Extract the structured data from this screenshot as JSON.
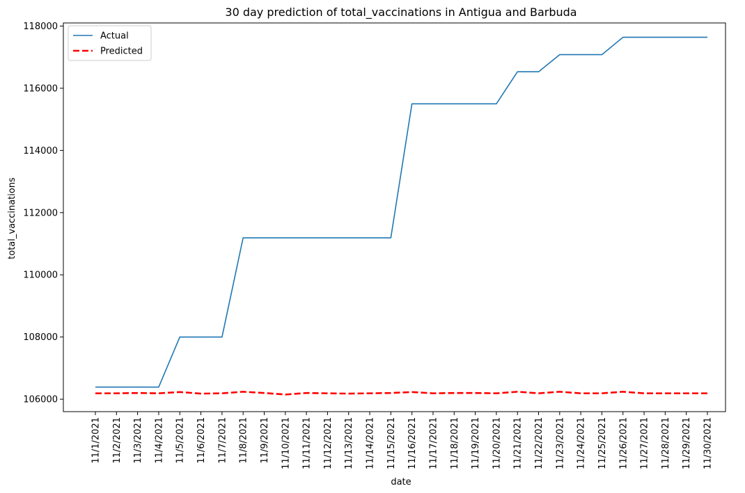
{
  "chart_data": {
    "type": "line",
    "title": "30 day prediction of total_vaccinations in Antigua and Barbuda",
    "xlabel": "date",
    "ylabel": "total_vaccinations",
    "categories": [
      "11/1/2021",
      "11/2/2021",
      "11/3/2021",
      "11/4/2021",
      "11/5/2021",
      "11/6/2021",
      "11/7/2021",
      "11/8/2021",
      "11/9/2021",
      "11/10/2021",
      "11/11/2021",
      "11/12/2021",
      "11/13/2021",
      "11/14/2021",
      "11/15/2021",
      "11/16/2021",
      "11/17/2021",
      "11/18/2021",
      "11/19/2021",
      "11/20/2021",
      "11/21/2021",
      "11/22/2021",
      "11/23/2021",
      "11/24/2021",
      "11/25/2021",
      "11/26/2021",
      "11/27/2021",
      "11/28/2021",
      "11/29/2021",
      "11/30/2021"
    ],
    "ylim": [
      105600,
      118100
    ],
    "yticks": [
      106000,
      108000,
      110000,
      112000,
      114000,
      116000,
      118000
    ],
    "grid": false,
    "legend_position": "top-left",
    "series": [
      {
        "name": "Actual",
        "color": "#1f77b4",
        "style": "solid",
        "values": [
          106390,
          106390,
          106390,
          106390,
          108000,
          108000,
          108000,
          111190,
          111190,
          111190,
          111190,
          111190,
          111190,
          111190,
          111190,
          115500,
          115500,
          115500,
          115500,
          115500,
          116530,
          116530,
          117080,
          117080,
          117080,
          117640,
          117640,
          117640,
          117640,
          117640
        ]
      },
      {
        "name": "Predicted",
        "color": "#ff0000",
        "style": "dashed",
        "values": [
          106190,
          106190,
          106200,
          106190,
          106230,
          106180,
          106190,
          106240,
          106200,
          106150,
          106200,
          106190,
          106180,
          106190,
          106200,
          106230,
          106190,
          106200,
          106200,
          106190,
          106240,
          106190,
          106240,
          106190,
          106190,
          106240,
          106190,
          106190,
          106190,
          106190
        ]
      }
    ]
  }
}
